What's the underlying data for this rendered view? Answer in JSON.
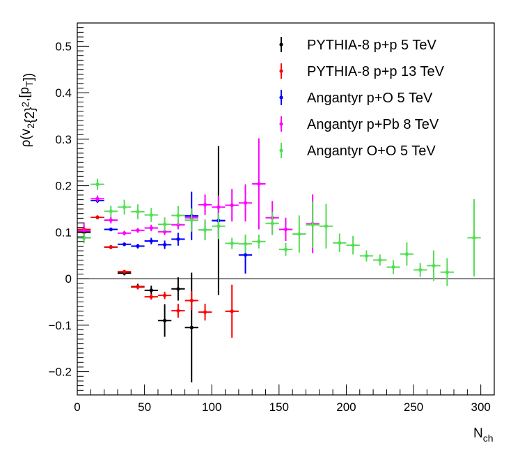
{
  "chart_data": {
    "type": "scatter",
    "x_axis": {
      "title_main": "N",
      "title_sub": "ch",
      "range": [
        0,
        310
      ],
      "ticks": [
        0,
        50,
        100,
        150,
        200,
        250,
        300
      ],
      "tick_labels": [
        "0",
        "50",
        "100",
        "150",
        "200",
        "250",
        "300"
      ]
    },
    "y_axis": {
      "title_parts": [
        {
          "text": "ρ(v",
          "shift": "none"
        },
        {
          "text": "2",
          "shift": "sub"
        },
        {
          "text": "{2}",
          "shift": "none"
        },
        {
          "text": "2",
          "shift": "super"
        },
        {
          "text": ",[p",
          "shift": "none"
        },
        {
          "text": "T",
          "shift": "sub"
        },
        {
          "text": "])",
          "shift": "none"
        }
      ],
      "range": [
        -0.25,
        0.55
      ],
      "ticks": [
        -0.2,
        -0.1,
        0,
        0.1,
        0.2,
        0.3,
        0.4,
        0.5
      ],
      "tick_labels": [
        "−0.2",
        "−0.1",
        "0",
        "0.1",
        "0.2",
        "0.3",
        "0.4",
        "0.5"
      ]
    },
    "zero_line": true,
    "grid": false,
    "legend_position": "top-right",
    "x_half_width": 5,
    "series": [
      {
        "name": "PYTHIA-8 p+p 5 TeV",
        "color": "#000000",
        "points": [
          {
            "x": 5,
            "y": 0.1,
            "err": 0.008
          },
          {
            "x": 15,
            "y": 0.132,
            "err": 0.004
          },
          {
            "x": 25,
            "y": 0.068,
            "err": 0.004
          },
          {
            "x": 35,
            "y": 0.012,
            "err": 0.005
          },
          {
            "x": 45,
            "y": -0.017,
            "err": 0.006
          },
          {
            "x": 55,
            "y": -0.025,
            "err": 0.01
          },
          {
            "x": 65,
            "y": -0.09,
            "err": 0.035
          },
          {
            "x": 75,
            "y": -0.022,
            "err": 0.025
          },
          {
            "x": 85,
            "y": -0.105,
            "err": 0.118
          },
          {
            "x": 105,
            "y": 0.125,
            "err": 0.16
          }
        ]
      },
      {
        "name": "PYTHIA-8 p+p 13 TeV",
        "color": "#ff0000",
        "points": [
          {
            "x": 5,
            "y": 0.106,
            "err": 0.008
          },
          {
            "x": 15,
            "y": 0.132,
            "err": 0.003
          },
          {
            "x": 25,
            "y": 0.068,
            "err": 0.003
          },
          {
            "x": 35,
            "y": 0.015,
            "err": 0.004
          },
          {
            "x": 45,
            "y": -0.018,
            "err": 0.005
          },
          {
            "x": 55,
            "y": -0.039,
            "err": 0.006
          },
          {
            "x": 65,
            "y": -0.036,
            "err": 0.008
          },
          {
            "x": 75,
            "y": -0.069,
            "err": 0.015
          },
          {
            "x": 85,
            "y": -0.047,
            "err": 0.02
          },
          {
            "x": 95,
            "y": -0.072,
            "err": 0.018
          },
          {
            "x": 115,
            "y": -0.07,
            "err": 0.057
          }
        ]
      },
      {
        "name": "Angantyr p+O 5 TeV",
        "color": "#0000ff",
        "points": [
          {
            "x": 5,
            "y": 0.088,
            "err": 0.006
          },
          {
            "x": 15,
            "y": 0.168,
            "err": 0.005
          },
          {
            "x": 25,
            "y": 0.106,
            "err": 0.004
          },
          {
            "x": 35,
            "y": 0.074,
            "err": 0.004
          },
          {
            "x": 45,
            "y": 0.07,
            "err": 0.005
          },
          {
            "x": 55,
            "y": 0.081,
            "err": 0.007
          },
          {
            "x": 65,
            "y": 0.073,
            "err": 0.009
          },
          {
            "x": 75,
            "y": 0.085,
            "err": 0.014
          },
          {
            "x": 85,
            "y": 0.135,
            "err": 0.052
          },
          {
            "x": 95,
            "y": 0.105,
            "err": 0.022
          },
          {
            "x": 105,
            "y": 0.125,
            "err": 0.028
          },
          {
            "x": 125,
            "y": 0.051,
            "err": 0.04
          }
        ]
      },
      {
        "name": "Angantyr p+Pb 8 TeV",
        "color": "#ff00ff",
        "points": [
          {
            "x": 5,
            "y": 0.103,
            "err": 0.018
          },
          {
            "x": 15,
            "y": 0.172,
            "err": 0.007
          },
          {
            "x": 25,
            "y": 0.126,
            "err": 0.007
          },
          {
            "x": 35,
            "y": 0.098,
            "err": 0.005
          },
          {
            "x": 45,
            "y": 0.104,
            "err": 0.005
          },
          {
            "x": 55,
            "y": 0.109,
            "err": 0.007
          },
          {
            "x": 65,
            "y": 0.101,
            "err": 0.007
          },
          {
            "x": 75,
            "y": 0.116,
            "err": 0.01
          },
          {
            "x": 85,
            "y": 0.131,
            "err": 0.012
          },
          {
            "x": 95,
            "y": 0.159,
            "err": 0.022
          },
          {
            "x": 105,
            "y": 0.154,
            "err": 0.025
          },
          {
            "x": 115,
            "y": 0.158,
            "err": 0.035
          },
          {
            "x": 125,
            "y": 0.163,
            "err": 0.04
          },
          {
            "x": 135,
            "y": 0.204,
            "err": 0.098
          },
          {
            "x": 145,
            "y": 0.131,
            "err": 0.036
          },
          {
            "x": 155,
            "y": 0.106,
            "err": 0.025
          },
          {
            "x": 175,
            "y": 0.118,
            "err": 0.063
          }
        ]
      },
      {
        "name": "Angantyr O+O 5 TeV",
        "color": "#55dd55",
        "points": [
          {
            "x": 5,
            "y": 0.088,
            "err": 0.012
          },
          {
            "x": 15,
            "y": 0.203,
            "err": 0.012
          },
          {
            "x": 25,
            "y": 0.145,
            "err": 0.012
          },
          {
            "x": 35,
            "y": 0.154,
            "err": 0.016
          },
          {
            "x": 45,
            "y": 0.144,
            "err": 0.016
          },
          {
            "x": 55,
            "y": 0.137,
            "err": 0.015
          },
          {
            "x": 65,
            "y": 0.117,
            "err": 0.015
          },
          {
            "x": 75,
            "y": 0.136,
            "err": 0.02
          },
          {
            "x": 85,
            "y": 0.126,
            "err": 0.025
          },
          {
            "x": 95,
            "y": 0.105,
            "err": 0.022
          },
          {
            "x": 105,
            "y": 0.113,
            "err": 0.028
          },
          {
            "x": 115,
            "y": 0.076,
            "err": 0.012
          },
          {
            "x": 125,
            "y": 0.075,
            "err": 0.02
          },
          {
            "x": 135,
            "y": 0.08,
            "err": 0.015
          },
          {
            "x": 145,
            "y": 0.119,
            "err": 0.025
          },
          {
            "x": 155,
            "y": 0.063,
            "err": 0.014
          },
          {
            "x": 165,
            "y": 0.096,
            "err": 0.04
          },
          {
            "x": 175,
            "y": 0.116,
            "err": 0.05
          },
          {
            "x": 185,
            "y": 0.113,
            "err": 0.048
          },
          {
            "x": 195,
            "y": 0.077,
            "err": 0.02
          },
          {
            "x": 205,
            "y": 0.072,
            "err": 0.02
          },
          {
            "x": 215,
            "y": 0.049,
            "err": 0.012
          },
          {
            "x": 225,
            "y": 0.04,
            "err": 0.012
          },
          {
            "x": 235,
            "y": 0.025,
            "err": 0.015
          },
          {
            "x": 245,
            "y": 0.053,
            "err": 0.025
          },
          {
            "x": 255,
            "y": 0.019,
            "err": 0.015
          },
          {
            "x": 265,
            "y": 0.028,
            "err": 0.033
          },
          {
            "x": 275,
            "y": 0.014,
            "err": 0.03
          },
          {
            "x": 295,
            "y": 0.088,
            "err": 0.083
          }
        ]
      }
    ]
  }
}
